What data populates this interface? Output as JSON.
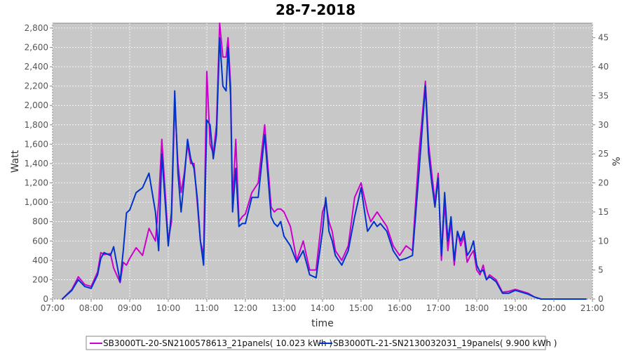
{
  "chart_data": {
    "type": "line",
    "title": "28-7-2018",
    "xlabel": "time",
    "ylabel": "Watt",
    "y2label": "%",
    "xlim": [
      "07:00",
      "21:00"
    ],
    "ylim": [
      0,
      2850
    ],
    "y2lim": [
      0,
      47.5
    ],
    "x_ticks": [
      "07:00",
      "08:00",
      "09:00",
      "10:00",
      "11:00",
      "12:00",
      "13:00",
      "14:00",
      "15:00",
      "16:00",
      "17:00",
      "18:00",
      "19:00",
      "20:00",
      "21:00"
    ],
    "y_ticks": [
      "0",
      "200",
      "400",
      "600",
      "800",
      "1,000",
      "1,200",
      "1,400",
      "1,600",
      "1,800",
      "2,000",
      "2,200",
      "2,400",
      "2,600",
      "2,800"
    ],
    "y2_ticks": [
      "0",
      "5",
      "10",
      "15",
      "20",
      "25",
      "30",
      "35",
      "40",
      "45"
    ],
    "grid": true,
    "legend_position": "bottom",
    "colors": {
      "plot_bg": "#c8c8c8",
      "grid": "#ffffff",
      "frame": "#888888"
    },
    "series": [
      {
        "name": "SB3000TL-20-SN2100578613_21panels( 10.023 kWh )",
        "color": "#cc00cc",
        "x": [
          "07:15",
          "07:30",
          "07:40",
          "07:50",
          "08:00",
          "08:10",
          "08:15",
          "08:20",
          "08:30",
          "08:35",
          "08:45",
          "08:50",
          "08:55",
          "09:00",
          "09:10",
          "09:20",
          "09:30",
          "09:40",
          "09:45",
          "09:50",
          "10:00",
          "10:05",
          "10:10",
          "10:15",
          "10:20",
          "10:25",
          "10:30",
          "10:35",
          "10:40",
          "10:45",
          "10:50",
          "10:55",
          "11:00",
          "11:05",
          "11:10",
          "11:15",
          "11:20",
          "11:25",
          "11:30",
          "11:33",
          "11:37",
          "11:40",
          "11:45",
          "11:50",
          "11:55",
          "12:00",
          "12:10",
          "12:20",
          "12:30",
          "12:40",
          "12:45",
          "12:50",
          "12:55",
          "13:00",
          "13:10",
          "13:20",
          "13:30",
          "13:40",
          "13:50",
          "14:00",
          "14:05",
          "14:10",
          "14:15",
          "14:20",
          "14:30",
          "14:40",
          "14:50",
          "15:00",
          "15:10",
          "15:15",
          "15:20",
          "15:25",
          "15:30",
          "15:40",
          "15:50",
          "16:00",
          "16:10",
          "16:20",
          "16:30",
          "16:40",
          "16:45",
          "16:50",
          "16:55",
          "17:00",
          "17:05",
          "17:10",
          "17:15",
          "17:20",
          "17:25",
          "17:30",
          "17:35",
          "17:40",
          "17:45",
          "17:50",
          "17:55",
          "18:00",
          "18:05",
          "18:10",
          "18:15",
          "18:20",
          "18:30",
          "18:40",
          "18:50",
          "19:00",
          "19:10",
          "19:20",
          "19:30",
          "19:40",
          "19:50",
          "20:00",
          "20:10",
          "20:20",
          "20:30",
          "20:40",
          "20:50"
        ],
        "y": [
          0,
          100,
          230,
          150,
          130,
          280,
          480,
          460,
          470,
          320,
          170,
          380,
          350,
          420,
          530,
          450,
          730,
          600,
          1000,
          1650,
          600,
          800,
          2050,
          1400,
          1100,
          1300,
          1600,
          1400,
          1400,
          1000,
          600,
          450,
          2350,
          1600,
          1500,
          1800,
          2850,
          2500,
          2500,
          2700,
          2200,
          1000,
          1650,
          800,
          850,
          880,
          1100,
          1200,
          1800,
          950,
          900,
          930,
          930,
          900,
          750,
          400,
          600,
          300,
          300,
          900,
          1000,
          800,
          700,
          500,
          400,
          550,
          1050,
          1200,
          900,
          800,
          850,
          900,
          850,
          750,
          550,
          450,
          550,
          500,
          1500,
          2250,
          1600,
          1300,
          1000,
          1300,
          400,
          1000,
          500,
          800,
          350,
          700,
          550,
          650,
          380,
          450,
          500,
          300,
          250,
          350,
          200,
          250,
          200,
          70,
          80,
          100,
          80,
          60,
          20,
          0,
          0,
          0,
          0,
          0,
          0,
          0,
          0
        ]
      },
      {
        "name": "SB3000TL-21-SN2130032031_19panels( 9.900 kWh )",
        "color": "#0033cc",
        "x": [
          "07:15",
          "07:30",
          "07:40",
          "07:50",
          "08:00",
          "08:10",
          "08:15",
          "08:20",
          "08:30",
          "08:35",
          "08:45",
          "08:50",
          "08:55",
          "09:00",
          "09:10",
          "09:20",
          "09:30",
          "09:40",
          "09:45",
          "09:50",
          "10:00",
          "10:05",
          "10:10",
          "10:15",
          "10:20",
          "10:25",
          "10:30",
          "10:35",
          "10:40",
          "10:45",
          "10:50",
          "10:55",
          "11:00",
          "11:05",
          "11:10",
          "11:15",
          "11:20",
          "11:25",
          "11:30",
          "11:33",
          "11:37",
          "11:40",
          "11:45",
          "11:50",
          "11:55",
          "12:00",
          "12:10",
          "12:20",
          "12:30",
          "12:40",
          "12:45",
          "12:50",
          "12:55",
          "13:00",
          "13:10",
          "13:20",
          "13:30",
          "13:40",
          "13:50",
          "14:00",
          "14:05",
          "14:10",
          "14:15",
          "14:20",
          "14:30",
          "14:40",
          "14:50",
          "15:00",
          "15:10",
          "15:15",
          "15:20",
          "15:25",
          "15:30",
          "15:40",
          "15:50",
          "16:00",
          "16:10",
          "16:20",
          "16:30",
          "16:40",
          "16:45",
          "16:50",
          "16:55",
          "17:00",
          "17:05",
          "17:10",
          "17:15",
          "17:20",
          "17:25",
          "17:30",
          "17:35",
          "17:40",
          "17:45",
          "17:50",
          "17:55",
          "18:00",
          "18:05",
          "18:10",
          "18:15",
          "18:20",
          "18:30",
          "18:40",
          "18:50",
          "19:00",
          "19:10",
          "19:20",
          "19:30",
          "19:40",
          "19:50",
          "20:00",
          "20:10",
          "20:20",
          "20:30",
          "20:40",
          "20:50"
        ],
        "y": [
          0,
          90,
          200,
          130,
          110,
          250,
          420,
          480,
          450,
          540,
          180,
          500,
          890,
          920,
          1100,
          1150,
          1300,
          900,
          500,
          1500,
          550,
          900,
          2150,
          1300,
          900,
          1250,
          1650,
          1450,
          1350,
          1050,
          600,
          350,
          1850,
          1800,
          1450,
          1700,
          2700,
          2200,
          2150,
          2600,
          2100,
          900,
          1350,
          750,
          780,
          780,
          1050,
          1050,
          1700,
          850,
          780,
          750,
          800,
          650,
          550,
          380,
          500,
          250,
          220,
          700,
          1050,
          700,
          600,
          450,
          350,
          500,
          850,
          1150,
          700,
          750,
          800,
          750,
          780,
          700,
          500,
          400,
          420,
          450,
          1300,
          2200,
          1500,
          1200,
          950,
          1250,
          450,
          1100,
          600,
          850,
          400,
          700,
          600,
          700,
          450,
          500,
          600,
          350,
          280,
          300,
          200,
          230,
          180,
          60,
          60,
          90,
          70,
          50,
          20,
          0,
          0,
          0,
          0,
          0,
          0,
          0,
          0
        ]
      }
    ]
  }
}
